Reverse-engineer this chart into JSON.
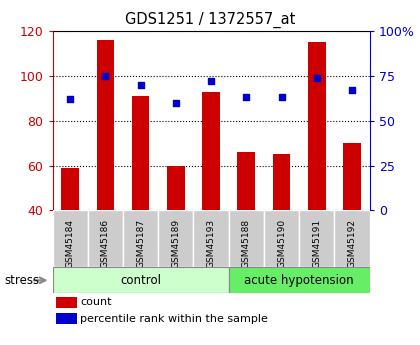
{
  "title": "GDS1251 / 1372557_at",
  "samples": [
    "GSM45184",
    "GSM45186",
    "GSM45187",
    "GSM45189",
    "GSM45193",
    "GSM45188",
    "GSM45190",
    "GSM45191",
    "GSM45192"
  ],
  "counts": [
    59,
    116,
    91,
    60,
    93,
    66,
    65,
    115,
    70
  ],
  "percentiles": [
    62,
    75,
    70,
    60,
    72,
    63,
    63,
    74,
    67
  ],
  "left_ylim": [
    40,
    120
  ],
  "right_ylim": [
    0,
    100
  ],
  "left_yticks": [
    40,
    60,
    80,
    100,
    120
  ],
  "right_yticks": [
    0,
    25,
    50,
    75,
    100
  ],
  "right_yticklabels": [
    "0",
    "25",
    "50",
    "75",
    "100%"
  ],
  "bar_color": "#cc0000",
  "dot_color": "#0000cc",
  "n_control": 5,
  "n_acute": 4,
  "control_label": "control",
  "acute_label": "acute hypotension",
  "stress_label": "stress",
  "legend_count": "count",
  "legend_percentile": "percentile rank within the sample",
  "control_color": "#ccffcc",
  "acute_color": "#66ee66",
  "label_box_color": "#cccccc",
  "tick_color_left": "#cc0000",
  "tick_color_right": "#0000cc",
  "bar_width": 0.5,
  "figsize": [
    4.2,
    3.45
  ],
  "dpi": 100
}
